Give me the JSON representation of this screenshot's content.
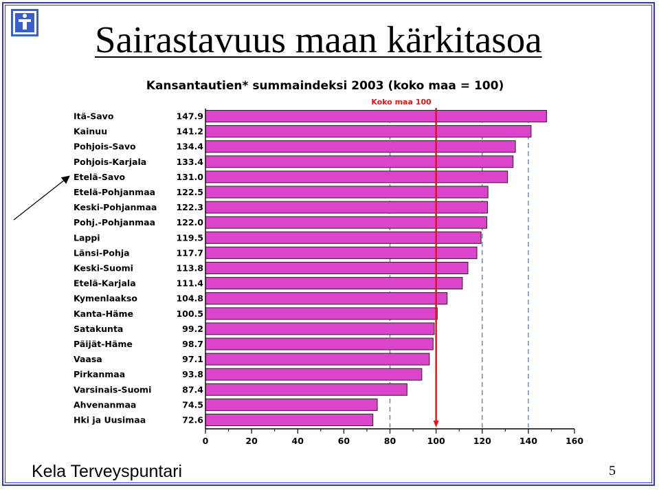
{
  "slide": {
    "title": "Sairastavuus maan kärkitasoa",
    "footer": "Kela Terveyspuntari",
    "page_number": "5"
  },
  "colors": {
    "bar_fill": "#dd44cc",
    "bar_stroke": "#222222",
    "reference_line": "#ee1111",
    "grid_dash": "#5577aa",
    "frame": "#3333cc",
    "logo": "#3a5fcd"
  },
  "chart_data": {
    "type": "bar",
    "orientation": "horizontal",
    "title": "Kansantautien* summaindeksi 2003 (koko maa = 100)",
    "xlabel": "",
    "ylabel": "",
    "xlim": [
      0,
      160
    ],
    "x_ticks": [
      0,
      20,
      40,
      60,
      80,
      100,
      120,
      140,
      160
    ],
    "dashed_gridlines_at": [
      80,
      120,
      140
    ],
    "reference_line": {
      "value": 100,
      "label": "Koko maa 100"
    },
    "categories": [
      "Itä-Savo",
      "Kainuu",
      "Pohjois-Savo",
      "Pohjois-Karjala",
      "Etelä-Savo",
      "Etelä-Pohjanmaa",
      "Keski-Pohjanmaa",
      "Pohj.-Pohjanmaa",
      "Lappi",
      "Länsi-Pohja",
      "Keski-Suomi",
      "Etelä-Karjala",
      "Kymenlaakso",
      "Kanta-Häme",
      "Satakunta",
      "Päijät-Häme",
      "Vaasa",
      "Pirkanmaa",
      "Varsinais-Suomi",
      "Ahvenanmaa",
      "Hki ja  Uusimaa"
    ],
    "values": [
      147.9,
      141.2,
      134.4,
      133.4,
      131.0,
      122.5,
      122.3,
      122.0,
      119.5,
      117.7,
      113.8,
      111.4,
      104.8,
      100.5,
      99.2,
      98.7,
      97.1,
      93.8,
      87.4,
      74.5,
      72.6
    ],
    "value_labels": [
      "147.9",
      "141.2",
      "134.4",
      "133.4",
      "131.0",
      "122.5",
      "122.3",
      "122.0",
      "119.5",
      "117.7",
      "113.8",
      "111.4",
      "104.8",
      "100.5",
      "99.2",
      "98.7",
      "97.1",
      "93.8",
      "87.4",
      "74.5",
      "72.6"
    ],
    "highlighted_category": "Etelä-Savo"
  }
}
